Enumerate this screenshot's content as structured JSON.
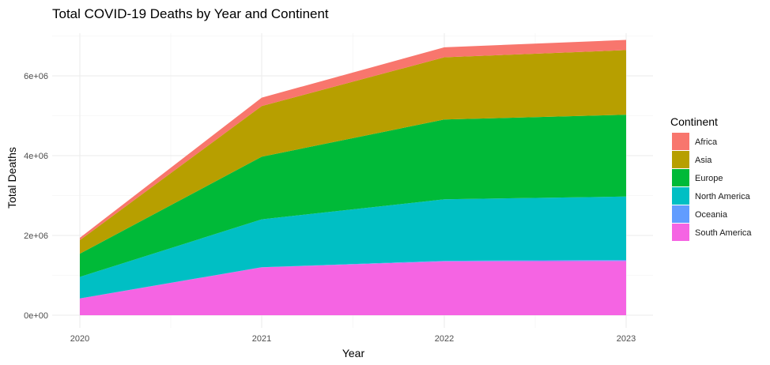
{
  "chart_data": {
    "type": "area",
    "stacked": true,
    "title": "Total COVID-19 Deaths by Year and Continent",
    "xlabel": "Year",
    "ylabel": "Total Deaths",
    "x": [
      "2020",
      "2021",
      "2022",
      "2023"
    ],
    "ylim": [
      0,
      7000000
    ],
    "yticks": [
      0,
      2000000,
      4000000,
      6000000
    ],
    "ytick_labels": [
      "0e+00",
      "2e+06",
      "4e+06",
      "6e+06"
    ],
    "grid": true,
    "legend_title": "Continent",
    "legend_position": "right",
    "series": [
      {
        "name": "South America",
        "color": "#F564E3",
        "values": [
          420000,
          1200000,
          1350000,
          1360000
        ]
      },
      {
        "name": "Oceania",
        "color": "#619CFF",
        "values": [
          1000,
          3000,
          15000,
          25000
        ]
      },
      {
        "name": "North America",
        "color": "#00BFC4",
        "values": [
          540000,
          1200000,
          1540000,
          1590000
        ]
      },
      {
        "name": "Europe",
        "color": "#00BA38",
        "values": [
          580000,
          1570000,
          2000000,
          2050000
        ]
      },
      {
        "name": "Asia",
        "color": "#B79F00",
        "values": [
          340000,
          1270000,
          1560000,
          1620000
        ]
      },
      {
        "name": "Africa",
        "color": "#F8766D",
        "values": [
          60000,
          210000,
          250000,
          255000
        ]
      }
    ],
    "legend_order": [
      "Africa",
      "Asia",
      "Europe",
      "North America",
      "Oceania",
      "South America"
    ]
  }
}
